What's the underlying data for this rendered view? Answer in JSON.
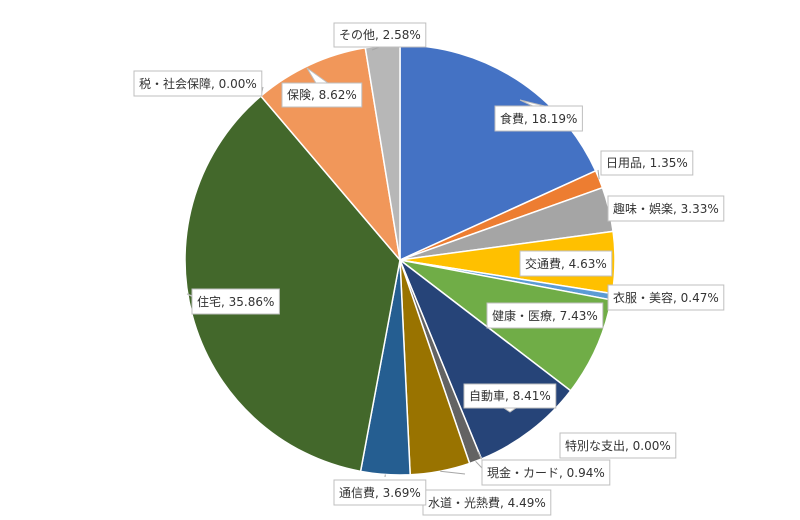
{
  "chart_data": {
    "type": "pie",
    "title": "",
    "start_angle_deg": 0,
    "direction": "clockwise",
    "slices": [
      {
        "name": "食費",
        "value": 18.19,
        "label": "食費, 18.19%",
        "color": "#4472C4"
      },
      {
        "name": "日用品",
        "value": 1.35,
        "label": "日用品, 1.35%",
        "color": "#ED7D31"
      },
      {
        "name": "趣味・娯楽",
        "value": 3.33,
        "label": "趣味・娯楽, 3.33%",
        "color": "#A5A5A5"
      },
      {
        "name": "交通費",
        "value": 4.63,
        "label": "交通費, 4.63%",
        "color": "#FFC000"
      },
      {
        "name": "衣服・美容",
        "value": 0.47,
        "label": "衣服・美容, 0.47%",
        "color": "#5B9BD5"
      },
      {
        "name": "健康・医療",
        "value": 7.43,
        "label": "健康・医療, 7.43%",
        "color": "#70AD47"
      },
      {
        "name": "自動車",
        "value": 8.41,
        "label": "自動車, 8.41%",
        "color": "#264478"
      },
      {
        "name": "特別な支出",
        "value": 0.0,
        "label": "特別な支出, 0.00%",
        "color": "#9E480E"
      },
      {
        "name": "現金・カード",
        "value": 0.94,
        "label": "現金・カード, 0.94%",
        "color": "#636363"
      },
      {
        "name": "水道・光熱費",
        "value": 4.49,
        "label": "水道・光熱費, 4.49%",
        "color": "#997300"
      },
      {
        "name": "通信費",
        "value": 3.69,
        "label": "通信費, 3.69%",
        "color": "#255E91"
      },
      {
        "name": "住宅",
        "value": 35.86,
        "label": "住宅, 35.86%",
        "color": "#43682B"
      },
      {
        "name": "税・社会保障",
        "value": 0.0,
        "label": "税・社会保障, 0.00%",
        "color": "#698ED0"
      },
      {
        "name": "保険",
        "value": 8.62,
        "label": "保険, 8.62%",
        "color": "#F1975A"
      },
      {
        "name": "その他",
        "value": 2.58,
        "label": "その他, 2.58%",
        "color": "#B7B7B7"
      }
    ]
  }
}
